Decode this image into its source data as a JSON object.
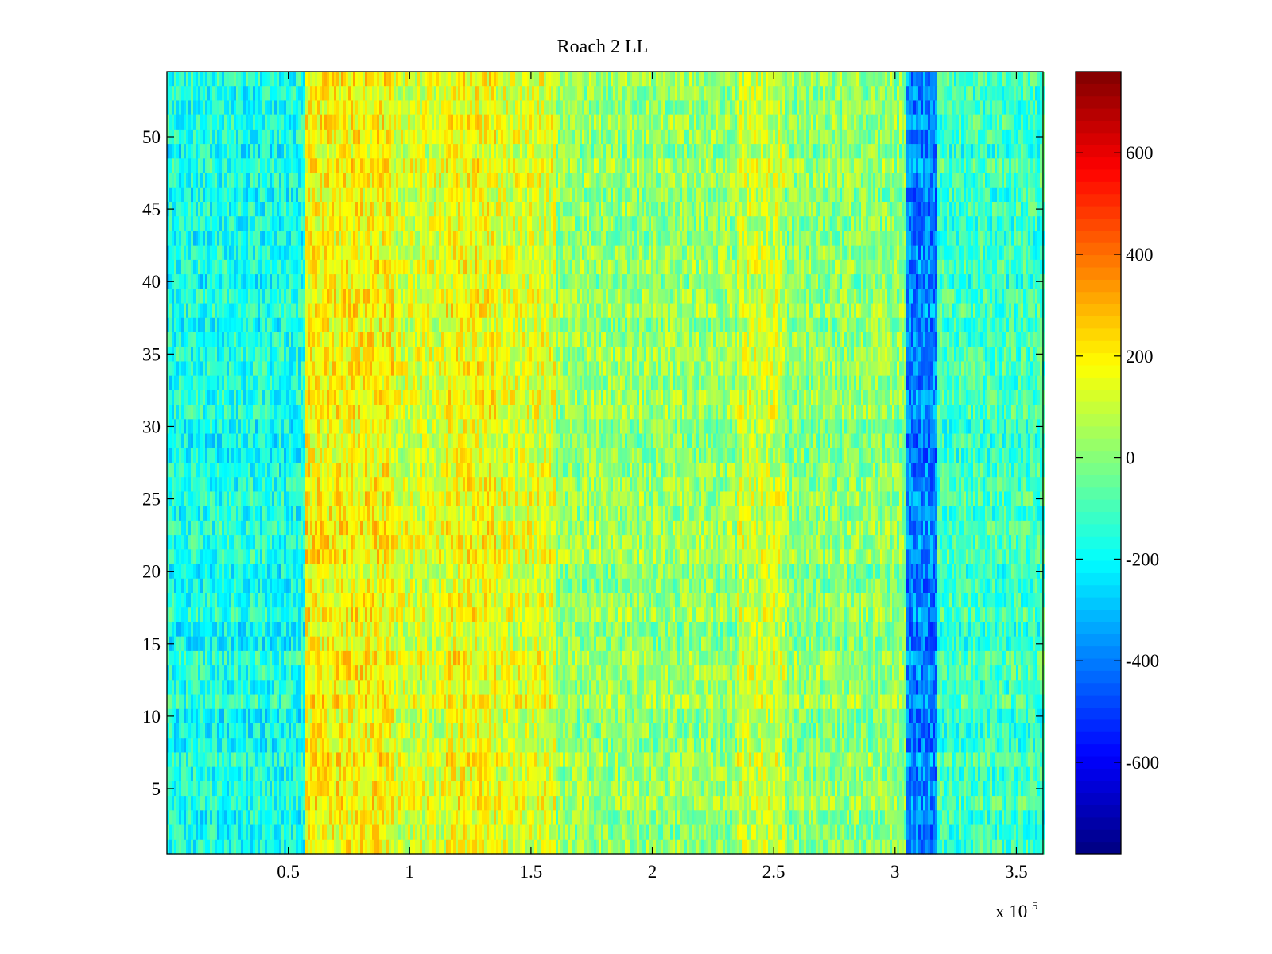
{
  "chart_data": {
    "type": "heatmap",
    "title": "Roach 2 LL",
    "xlabel": "",
    "ylabel": "",
    "x_multiplier_label": {
      "prefix": "x 10",
      "exponent": "5"
    },
    "xlim": [
      0,
      361000
    ],
    "ylim": [
      0.5,
      54.5
    ],
    "x_ticks": [
      0.5,
      1,
      1.5,
      2,
      2.5,
      3,
      3.5
    ],
    "x_tick_labels": [
      "0.5",
      "1",
      "1.5",
      "2",
      "2.5",
      "3",
      "3.5"
    ],
    "y_ticks": [
      5,
      10,
      15,
      20,
      25,
      30,
      35,
      40,
      45,
      50
    ],
    "y_tick_labels": [
      "5",
      "10",
      "15",
      "20",
      "25",
      "30",
      "35",
      "40",
      "45",
      "50"
    ],
    "rows": 54,
    "colormap": "jet",
    "colorbar": {
      "range": [
        -780,
        760
      ],
      "ticks": [
        -600,
        -400,
        -200,
        0,
        200,
        400,
        600
      ],
      "tick_labels": [
        "-600",
        "-400",
        "-200",
        "0",
        "200",
        "400",
        "600"
      ],
      "colors": [
        "#00008f",
        "#0000ff",
        "#00ffff",
        "#ffff00",
        "#ff0000",
        "#800000"
      ]
    },
    "column_bands": [
      {
        "x_start": 0,
        "x_end": 57000,
        "value": -170
      },
      {
        "x_start": 57000,
        "x_end": 93000,
        "value": 185
      },
      {
        "x_start": 93000,
        "x_end": 115000,
        "value": 120
      },
      {
        "x_start": 115000,
        "x_end": 136000,
        "value": 170
      },
      {
        "x_start": 136000,
        "x_end": 160000,
        "value": 130
      },
      {
        "x_start": 160000,
        "x_end": 235000,
        "value": 20
      },
      {
        "x_start": 235000,
        "x_end": 255000,
        "value": 100
      },
      {
        "x_start": 255000,
        "x_end": 305000,
        "value": 10
      },
      {
        "x_start": 305000,
        "x_end": 317000,
        "value": -390
      },
      {
        "x_start": 317000,
        "x_end": 361000,
        "value": -110
      }
    ]
  }
}
